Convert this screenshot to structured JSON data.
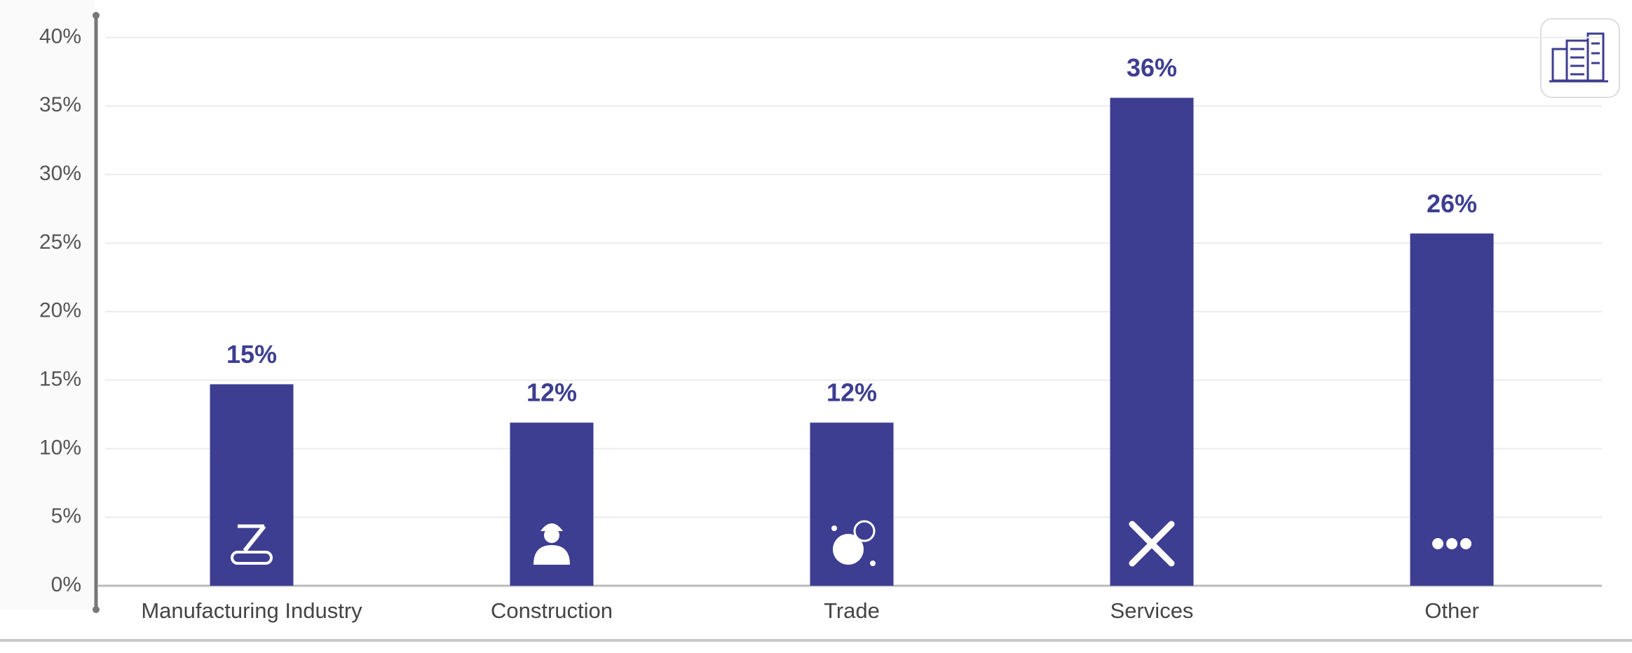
{
  "chart_data": {
    "type": "bar",
    "categories": [
      "Manufacturing Industry",
      "Construction",
      "Trade",
      "Services",
      "Other"
    ],
    "values": [
      14.7,
      11.9,
      11.9,
      35.6,
      25.7
    ],
    "value_labels": [
      "15%",
      "12%",
      "12%",
      "36%",
      "26%"
    ],
    "color": "#3d3e91",
    "ylim": [
      0,
      40
    ],
    "yticks": [
      {
        "value": 0,
        "label": "0%"
      },
      {
        "value": 5,
        "label": "5%"
      },
      {
        "value": 10,
        "label": "10%"
      },
      {
        "value": 15,
        "label": "15%"
      },
      {
        "value": 20,
        "label": "20%"
      },
      {
        "value": 25,
        "label": "25%"
      },
      {
        "value": 30,
        "label": "30%"
      },
      {
        "value": 35,
        "label": "35%"
      },
      {
        "value": 40,
        "label": "40%"
      }
    ],
    "grid": true
  }
}
